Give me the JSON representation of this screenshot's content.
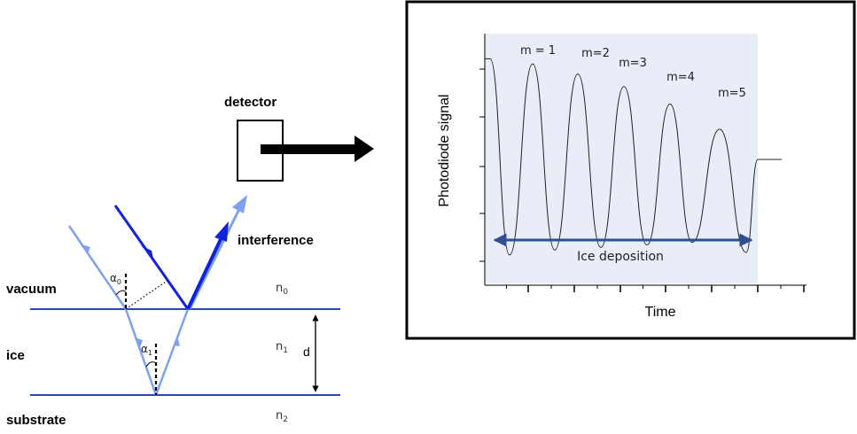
{
  "diagram": {
    "labels": {
      "detector": "detector",
      "interference": "interference",
      "vacuum": "vacuum",
      "ice": "ice",
      "substrate": "substrate",
      "d": "d"
    },
    "refractive_indices": [
      {
        "base": "n",
        "sub": "0"
      },
      {
        "base": "n",
        "sub": "1"
      },
      {
        "base": "n",
        "sub": "2"
      }
    ],
    "angles": [
      {
        "base": "α",
        "sub": "0"
      },
      {
        "base": "α",
        "sub": "1"
      }
    ],
    "colors": {
      "layer_line": "#2c44c8",
      "incident_beam_light": "#7da1f0",
      "incident_beam_dark": "#1122dd",
      "detector_arrow": "#000000",
      "plot_background": "#e8edf8",
      "deposition_arrow": "#2f4f8f"
    }
  },
  "chart_data": {
    "type": "line",
    "xlabel": "Time",
    "ylabel": "Photodiode signal",
    "fringe_labels": [
      "m = 1",
      "m=2",
      "m=3",
      "m=4",
      "m=5"
    ],
    "annotation": "Ice deposition",
    "series": [
      {
        "maxima": [
          0.88,
          0.84,
          0.79,
          0.72,
          0.62
        ],
        "minima": [
          0.12,
          0.14,
          0.15,
          0.16,
          0.17,
          0.13
        ],
        "start_level": 0.9,
        "end_level": 0.5
      }
    ]
  }
}
